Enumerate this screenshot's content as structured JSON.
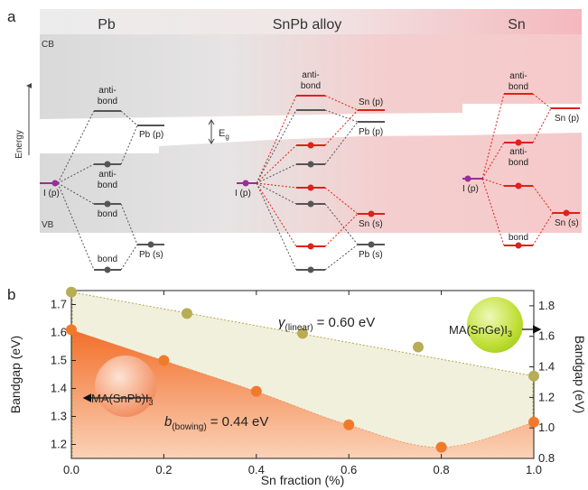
{
  "panel_a": {
    "label": "a",
    "headers": {
      "pb": "Pb",
      "alloy": "SnPb alloy",
      "sn": "Sn"
    },
    "cb": "CB",
    "vb": "VB",
    "energy": "Energy",
    "eg": "E",
    "eg_sub": "g",
    "pb_col": {
      "antibond_top_1": "anti-",
      "antibond_top_2": "bond",
      "antibond_mid_1": "anti-",
      "antibond_mid_2": "bond",
      "bond_mid": "bond",
      "bond_low": "bond",
      "ip": "I (p)",
      "pbp": "Pb (p)",
      "pbs": "Pb (s)"
    },
    "alloy_col": {
      "antibond_1": "anti-",
      "antibond_2": "bond",
      "ip": "I (p)",
      "snp": "Sn (p)",
      "pbp": "Pb (p)",
      "sns": "Sn (s)",
      "pbs": "Pb (s)"
    },
    "sn_col": {
      "antibond_top_1": "anti-",
      "antibond_top_2": "bond",
      "antibond_mid_1": "anti-",
      "antibond_mid_2": "bond",
      "bond_mid": "bond",
      "bond_low": "bond",
      "ip": "I (p)",
      "snp": "Sn (p)",
      "sns": "Sn (s)"
    },
    "colors": {
      "pb_level": "#555555",
      "sn_level": "#e0201c",
      "iodine": "#9b2c9b"
    }
  },
  "panel_b": {
    "label": "b",
    "annotation_linear_sym": "γ",
    "annotation_linear_sub": "(linear)",
    "annotation_linear_val": "= 0.60 eV",
    "annotation_bowing_sym": "b",
    "annotation_bowing_sub": "(bowing)",
    "annotation_bowing_val": "= 0.44 eV",
    "bubble_snpb": "MA(SnPb)I",
    "bubble_snpb_sub": "3",
    "bubble_snge": "MA(SnGe)I",
    "bubble_snge_sub": "3"
  },
  "chart_data": {
    "type": "scatter",
    "xlabel": "Sn fraction (%)",
    "ylabel": "Bandgap (eV)",
    "y2label": "Bandgap (eV)",
    "xlim": [
      0,
      1
    ],
    "ylim": [
      1.15,
      1.75
    ],
    "y2lim": [
      0.8,
      1.9
    ],
    "x_ticks": [
      "0.0",
      "0.2",
      "0.4",
      "0.6",
      "0.8",
      "1.0"
    ],
    "y_ticks": [
      "1.2",
      "1.3",
      "1.4",
      "1.5",
      "1.6",
      "1.7"
    ],
    "y2_ticks": [
      "0.8",
      "1.0",
      "1.2",
      "1.4",
      "1.6",
      "1.8"
    ],
    "series": [
      {
        "name": "MA(SnPb)I3",
        "axis": "left",
        "color": "#f07a2c",
        "x": [
          0.0,
          0.2,
          0.4,
          0.6,
          0.8,
          1.0
        ],
        "y": [
          1.61,
          1.5,
          1.39,
          1.27,
          1.19,
          1.28
        ]
      },
      {
        "name": "MA(SnGe)I3",
        "axis": "right",
        "color": "#b8ad55",
        "x": [
          0.0,
          0.25,
          0.5,
          0.75,
          1.0
        ],
        "y": [
          1.89,
          1.75,
          1.62,
          1.53,
          1.34
        ]
      }
    ]
  }
}
